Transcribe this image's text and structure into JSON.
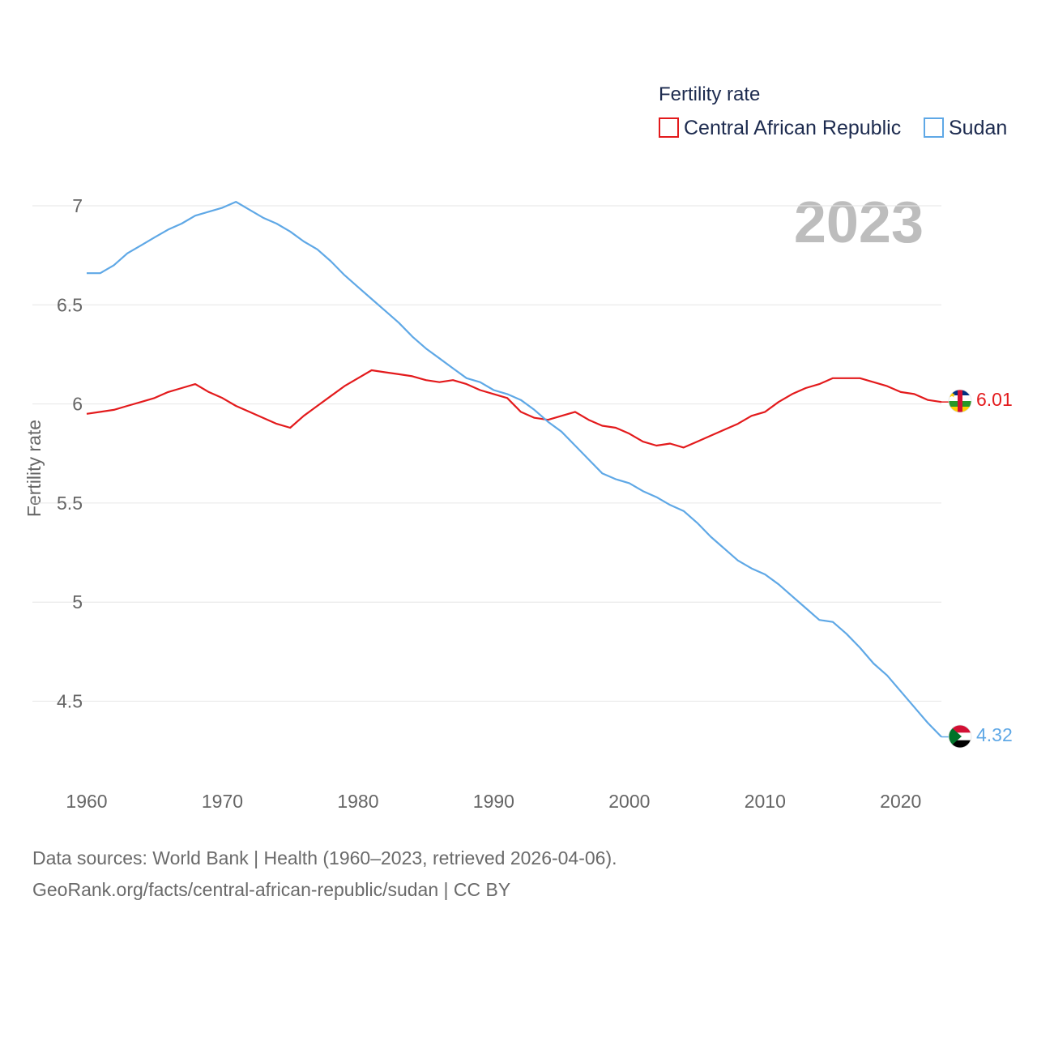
{
  "chart_data": {
    "type": "line",
    "legend_title": "Fertility rate",
    "ylabel": "Fertility rate",
    "xlabel": "",
    "year_label": "2023",
    "xlim": [
      1960,
      2023
    ],
    "ylim": [
      4.25,
      7.1
    ],
    "yticks": [
      4.5,
      5,
      5.5,
      6,
      6.5,
      7
    ],
    "ytick_labels": [
      "4.5",
      "5",
      "5.5",
      "6",
      "6.5",
      "7"
    ],
    "xticks": [
      1960,
      1970,
      1980,
      1990,
      2000,
      2010,
      2020
    ],
    "xtick_labels": [
      "1960",
      "1970",
      "1980",
      "1990",
      "2000",
      "2010",
      "2020"
    ],
    "grid": true,
    "legend_position": "top-right",
    "series": [
      {
        "name": "Central African Republic",
        "color": "#e31a1c",
        "end_label": "6.01",
        "flag_icon": "central-african-republic-flag-icon",
        "x": [
          1960,
          1961,
          1962,
          1963,
          1964,
          1965,
          1966,
          1967,
          1968,
          1969,
          1970,
          1971,
          1972,
          1973,
          1974,
          1975,
          1976,
          1977,
          1978,
          1979,
          1980,
          1981,
          1982,
          1983,
          1984,
          1985,
          1986,
          1987,
          1988,
          1989,
          1990,
          1991,
          1992,
          1993,
          1994,
          1995,
          1996,
          1997,
          1998,
          1999,
          2000,
          2001,
          2002,
          2003,
          2004,
          2005,
          2006,
          2007,
          2008,
          2009,
          2010,
          2011,
          2012,
          2013,
          2014,
          2015,
          2016,
          2017,
          2018,
          2019,
          2020,
          2021,
          2022,
          2023
        ],
        "values": [
          5.95,
          5.96,
          5.97,
          5.99,
          6.01,
          6.03,
          6.06,
          6.08,
          6.1,
          6.06,
          6.03,
          5.99,
          5.96,
          5.93,
          5.9,
          5.88,
          5.94,
          5.99,
          6.04,
          6.09,
          6.13,
          6.17,
          6.16,
          6.15,
          6.14,
          6.12,
          6.11,
          6.12,
          6.1,
          6.07,
          6.05,
          6.03,
          5.96,
          5.93,
          5.92,
          5.94,
          5.96,
          5.92,
          5.89,
          5.88,
          5.85,
          5.81,
          5.79,
          5.8,
          5.78,
          5.81,
          5.84,
          5.87,
          5.9,
          5.94,
          5.96,
          6.01,
          6.05,
          6.08,
          6.1,
          6.13,
          6.13,
          6.13,
          6.11,
          6.09,
          6.06,
          6.05,
          6.02,
          6.01
        ]
      },
      {
        "name": "Sudan",
        "color": "#5fa8e6",
        "end_label": "4.32",
        "flag_icon": "sudan-flag-icon",
        "x": [
          1960,
          1961,
          1962,
          1963,
          1964,
          1965,
          1966,
          1967,
          1968,
          1969,
          1970,
          1971,
          1972,
          1973,
          1974,
          1975,
          1976,
          1977,
          1978,
          1979,
          1980,
          1981,
          1982,
          1983,
          1984,
          1985,
          1986,
          1987,
          1988,
          1989,
          1990,
          1991,
          1992,
          1993,
          1994,
          1995,
          1996,
          1997,
          1998,
          1999,
          2000,
          2001,
          2002,
          2003,
          2004,
          2005,
          2006,
          2007,
          2008,
          2009,
          2010,
          2011,
          2012,
          2013,
          2014,
          2015,
          2016,
          2017,
          2018,
          2019,
          2020,
          2021,
          2022,
          2023
        ],
        "values": [
          6.66,
          6.66,
          6.7,
          6.76,
          6.8,
          6.84,
          6.88,
          6.91,
          6.95,
          6.97,
          6.99,
          7.02,
          6.98,
          6.94,
          6.91,
          6.87,
          6.82,
          6.78,
          6.72,
          6.65,
          6.59,
          6.53,
          6.47,
          6.41,
          6.34,
          6.28,
          6.23,
          6.18,
          6.13,
          6.11,
          6.07,
          6.05,
          6.02,
          5.97,
          5.91,
          5.86,
          5.79,
          5.72,
          5.65,
          5.62,
          5.6,
          5.56,
          5.53,
          5.49,
          5.46,
          5.4,
          5.33,
          5.27,
          5.21,
          5.17,
          5.14,
          5.09,
          5.03,
          4.97,
          4.91,
          4.9,
          4.84,
          4.77,
          4.69,
          4.63,
          4.55,
          4.47,
          4.39,
          4.32
        ]
      }
    ]
  },
  "footer": {
    "line1": "Data sources: World Bank | Health (1960–2023, retrieved 2026-04-06).",
    "line2": "GeoRank.org/facts/central-african-republic/sudan | CC BY"
  }
}
